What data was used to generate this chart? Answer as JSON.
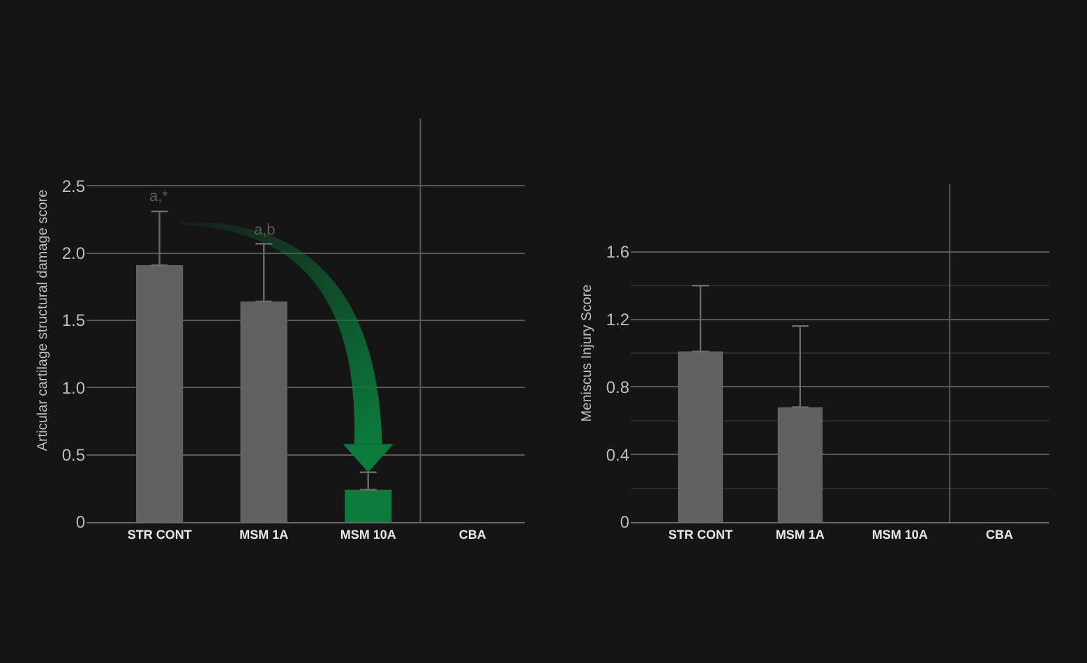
{
  "chart_data": [
    {
      "type": "bar",
      "ylabel": "Articular cartilage structural damage score",
      "categories": [
        "STR CONT",
        "MSM 1A",
        "MSM 10A",
        "CBA"
      ],
      "values": [
        1.91,
        1.64,
        0.24,
        null
      ],
      "colors": [
        "#616161",
        "#616161",
        "#0b7a3b",
        null
      ],
      "errors": [
        [
          1.91,
          2.31
        ],
        [
          1.64,
          2.07
        ],
        [
          0.24,
          0.37
        ],
        null
      ],
      "ylim": [
        0,
        3
      ],
      "yticks": [
        0,
        0.5,
        {
          "value": 1,
          "label": "1.0"
        },
        1.5,
        {
          "value": 2,
          "label": "2.0"
        },
        2.5
      ],
      "grid": "y",
      "annotations": [
        {
          "text": "a,*",
          "x": "STR CONT",
          "y": 2.31
        },
        {
          "text": "a,b",
          "x": "MSM 1A",
          "y": 2.07
        }
      ]
    },
    {
      "type": "bar",
      "ylabel": "Meniscus Injury Score",
      "categories": [
        "STR CONT",
        "MSM 1A",
        "MSM 10A",
        "CBA"
      ],
      "values": [
        1.01,
        0.68,
        null,
        null
      ],
      "colors": [
        "#616161",
        "#616161",
        null,
        null
      ],
      "errors": [
        [
          1.01,
          1.4
        ],
        [
          0.68,
          1.16
        ],
        null,
        null
      ],
      "ylim": [
        0,
        2
      ],
      "yticks": [
        0,
        {
          "value": 0.2,
          "label": null
        },
        0.4,
        {
          "value": 0.6,
          "label": null
        },
        0.8,
        {
          "value": 1.0,
          "label": null
        },
        1.2,
        {
          "value": 1.4,
          "label": null
        },
        1.6
      ],
      "grid": "y"
    }
  ]
}
